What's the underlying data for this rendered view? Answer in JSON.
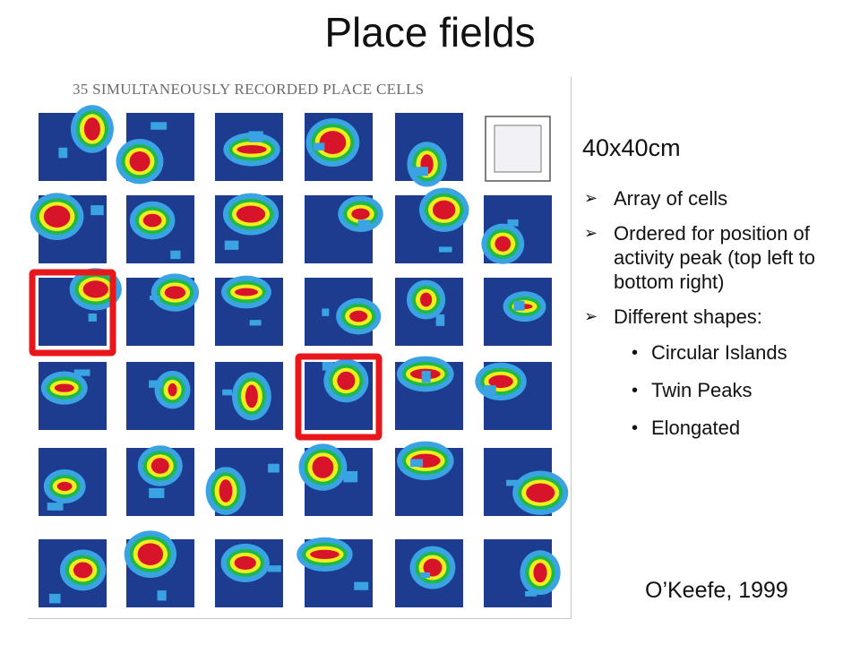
{
  "slide": {
    "title": "Place fields",
    "figure_caption": "35 SIMULTANEOUSLY RECORDED PLACE CELLS",
    "dimension": "40x40cm",
    "bullets": [
      {
        "text": "Array of cells"
      },
      {
        "text": "Ordered for position of activity peak (top left to bottom right)"
      },
      {
        "text": "Different shapes:"
      }
    ],
    "sub_bullets": [
      "Circular Islands",
      "Twin Peaks",
      "Elongated"
    ],
    "citation": "O’Keefe, 1999"
  },
  "colors": {
    "background": "#1d3b8f",
    "low": "#3aa3e4",
    "mid": "#1fb84a",
    "high": "#f3ee1b",
    "peak": "#d8142a",
    "highlight": "#e8171c"
  },
  "icons": {
    "bullet": "arrowhead-icon",
    "sub_bullet": "dot-icon"
  }
}
